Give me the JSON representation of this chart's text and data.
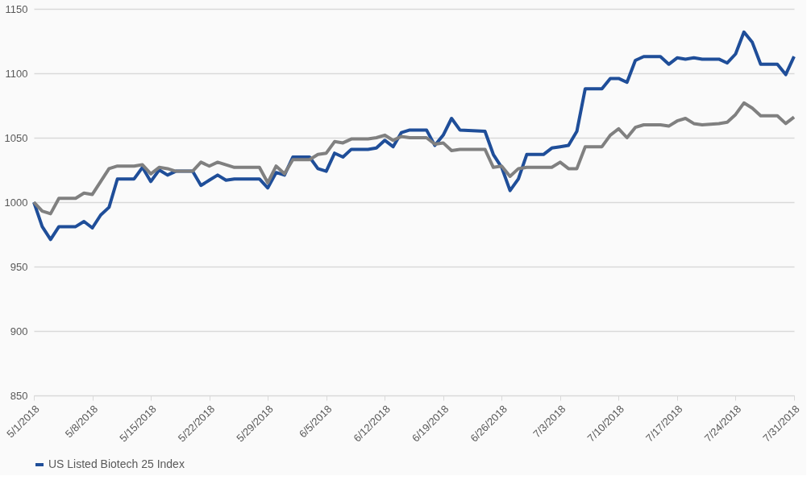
{
  "chart_data": {
    "type": "line",
    "x": [
      "2018-05-01",
      "2018-05-02",
      "2018-05-03",
      "2018-05-04",
      "2018-05-06",
      "2018-05-07",
      "2018-05-08",
      "2018-05-09",
      "2018-05-10",
      "2018-05-11",
      "2018-05-13",
      "2018-05-14",
      "2018-05-15",
      "2018-05-16",
      "2018-05-17",
      "2018-05-18",
      "2018-05-20",
      "2018-05-21",
      "2018-05-22",
      "2018-05-23",
      "2018-05-24",
      "2018-05-25",
      "2018-05-28",
      "2018-05-29",
      "2018-05-30",
      "2018-05-31",
      "2018-06-01",
      "2018-06-03",
      "2018-06-04",
      "2018-06-05",
      "2018-06-06",
      "2018-06-07",
      "2018-06-08",
      "2018-06-10",
      "2018-06-11",
      "2018-06-12",
      "2018-06-13",
      "2018-06-14",
      "2018-06-15",
      "2018-06-17",
      "2018-06-18",
      "2018-06-19",
      "2018-06-20",
      "2018-06-21",
      "2018-06-24",
      "2018-06-25",
      "2018-06-26",
      "2018-06-27",
      "2018-06-28",
      "2018-06-29",
      "2018-07-01",
      "2018-07-02",
      "2018-07-03",
      "2018-07-04",
      "2018-07-05",
      "2018-07-06",
      "2018-07-08",
      "2018-07-09",
      "2018-07-10",
      "2018-07-11",
      "2018-07-12",
      "2018-07-13",
      "2018-07-15",
      "2018-07-16",
      "2018-07-17",
      "2018-07-18",
      "2018-07-19",
      "2018-07-20",
      "2018-07-22",
      "2018-07-23",
      "2018-07-24",
      "2018-07-25",
      "2018-07-26",
      "2018-07-27",
      "2018-07-29",
      "2018-07-30",
      "2018-07-31"
    ],
    "series": [
      {
        "name": "US Listed Biotech 25 Index",
        "color": "#1f4e99",
        "values": [
          1000,
          981,
          971,
          981,
          981,
          985,
          980,
          990,
          996,
          1018,
          1018,
          1027,
          1016,
          1025,
          1021,
          1024,
          1024,
          1013,
          1017,
          1021,
          1017,
          1018,
          1018,
          1011,
          1023,
          1021,
          1035,
          1035,
          1026,
          1024,
          1038,
          1035,
          1041,
          1041,
          1042,
          1048,
          1043,
          1054,
          1056,
          1056,
          1044,
          1052,
          1065,
          1056,
          1055,
          1037,
          1027,
          1009,
          1018,
          1037,
          1037,
          1042,
          1043,
          1044,
          1055,
          1088,
          1088,
          1096,
          1096,
          1093,
          1110,
          1113,
          1113,
          1107,
          1112,
          1111,
          1112,
          1111,
          1111,
          1108,
          1115,
          1132,
          1124,
          1107,
          1107,
          1099,
          1113
        ]
      },
      {
        "color": "#808080",
        "values": [
          1000,
          993,
          991,
          1003,
          1003,
          1007,
          1006,
          1016,
          1026,
          1028,
          1028,
          1029,
          1022,
          1027,
          1026,
          1024,
          1024,
          1031,
          1028,
          1031,
          1029,
          1027,
          1027,
          1015,
          1028,
          1022,
          1033,
          1033,
          1037,
          1038,
          1047,
          1046,
          1049,
          1049,
          1050,
          1052,
          1048,
          1051,
          1050,
          1050,
          1045,
          1046,
          1040,
          1041,
          1041,
          1027,
          1028,
          1020,
          1026,
          1027,
          1027,
          1027,
          1031,
          1026,
          1026,
          1043,
          1043,
          1052,
          1057,
          1050,
          1058,
          1060,
          1060,
          1059,
          1063,
          1065,
          1061,
          1060,
          1061,
          1062,
          1068,
          1077,
          1073,
          1067,
          1067,
          1061,
          1066
        ]
      }
    ],
    "xlim": [
      "2018-05-01",
      "2018-07-31"
    ],
    "xticks": [
      {
        "value": "2018-05-01",
        "label": "5/1/2018"
      },
      {
        "value": "2018-05-08",
        "label": "5/8/2018"
      },
      {
        "value": "2018-05-15",
        "label": "5/15/2018"
      },
      {
        "value": "2018-05-22",
        "label": "5/22/2018"
      },
      {
        "value": "2018-05-29",
        "label": "5/29/2018"
      },
      {
        "value": "2018-06-05",
        "label": "6/5/2018"
      },
      {
        "value": "2018-06-12",
        "label": "6/12/2018"
      },
      {
        "value": "2018-06-19",
        "label": "6/19/2018"
      },
      {
        "value": "2018-06-26",
        "label": "6/26/2018"
      },
      {
        "value": "2018-07-03",
        "label": "7/3/2018"
      },
      {
        "value": "2018-07-10",
        "label": "7/10/2018"
      },
      {
        "value": "2018-07-17",
        "label": "7/17/2018"
      },
      {
        "value": "2018-07-24",
        "label": "7/24/2018"
      },
      {
        "value": "2018-07-31",
        "label": "7/31/2018"
      }
    ],
    "ylim": [
      850,
      1150
    ],
    "yticks": [
      850,
      900,
      950,
      1000,
      1050,
      1100,
      1150
    ],
    "grid": "y",
    "legend": "bottom",
    "marker": "none",
    "line_style": "solid"
  }
}
